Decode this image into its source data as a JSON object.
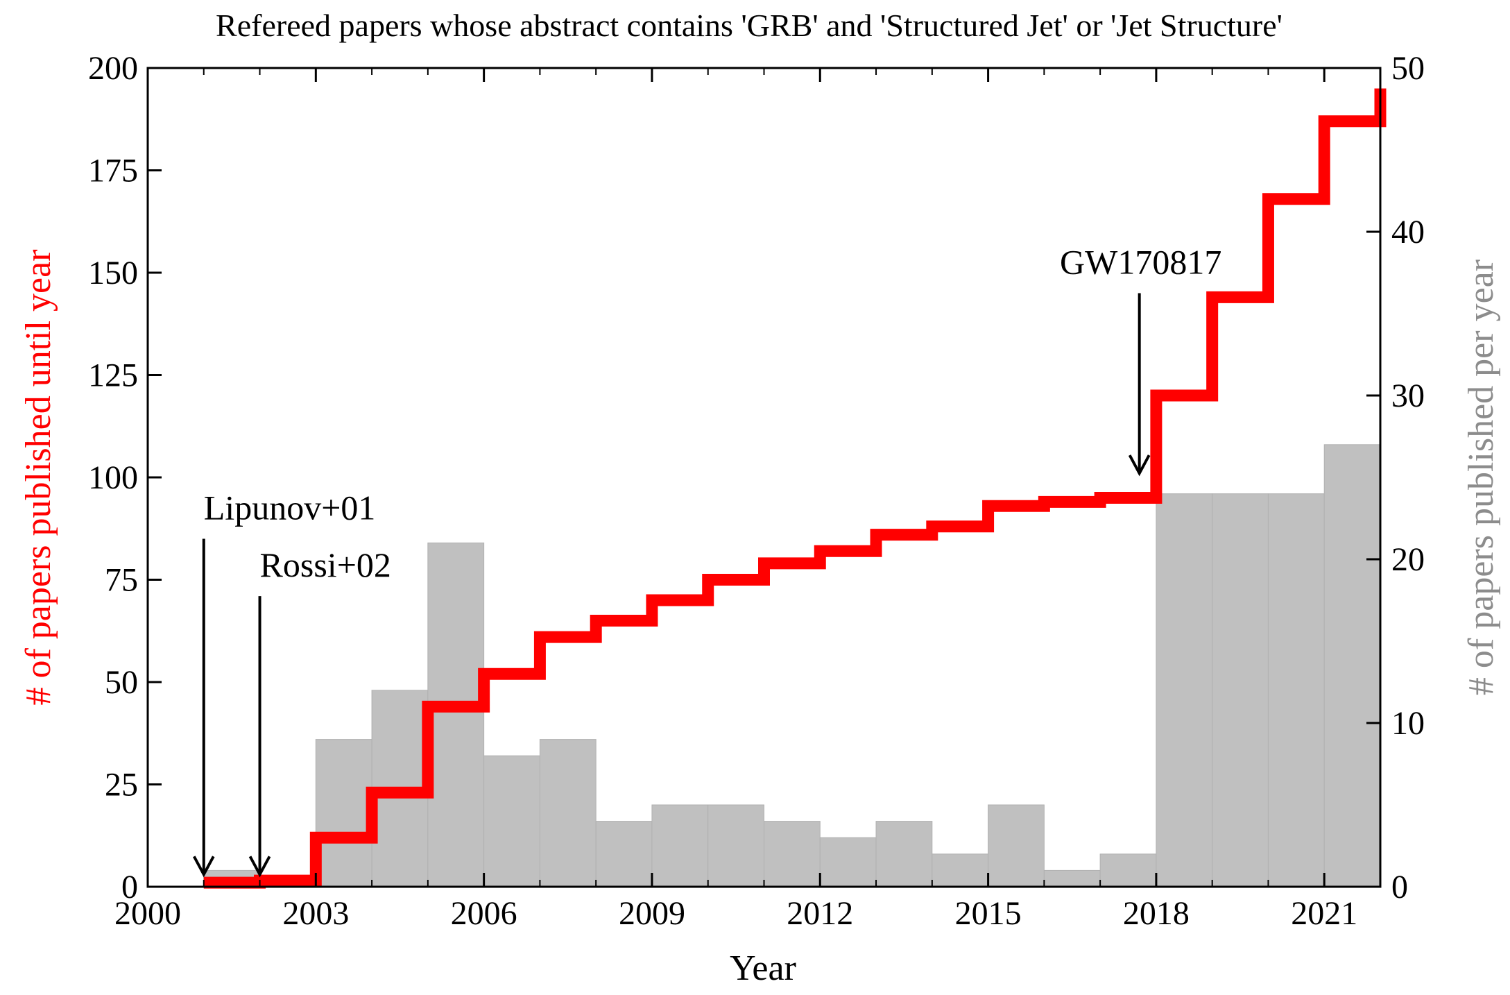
{
  "chart_data": {
    "type": "bar+step",
    "title": "Refereed papers whose abstract contains 'GRB' and 'Structured Jet' or 'Jet Structure'",
    "xlabel": "Year",
    "ylabel_left": "# of papers published until year",
    "ylabel_right": "# of papers published per year",
    "xlim": [
      2000,
      2022
    ],
    "ylim_left": [
      0,
      200
    ],
    "ylim_right": [
      0,
      50
    ],
    "x_ticks": [
      "2000",
      "2003",
      "2006",
      "2009",
      "2012",
      "2015",
      "2018",
      "2021"
    ],
    "y_left_ticks": [
      "0",
      "25",
      "50",
      "75",
      "100",
      "125",
      "150",
      "175",
      "200"
    ],
    "y_right_ticks": [
      "0",
      "10",
      "20",
      "30",
      "40",
      "50"
    ],
    "colors": {
      "cumulative": "#ff0000",
      "per_year": "#c0c0c0",
      "axis": "#000000",
      "right_label": "#8c8c8c"
    },
    "series": [
      {
        "name": "papers published per year",
        "axis": "right",
        "type": "bar",
        "years": [
          2001,
          2002,
          2003,
          2004,
          2005,
          2006,
          2007,
          2008,
          2009,
          2010,
          2011,
          2012,
          2013,
          2014,
          2015,
          2016,
          2017,
          2018,
          2019,
          2020,
          2021
        ],
        "values": [
          1,
          0,
          9,
          12,
          21,
          8,
          9,
          4,
          5,
          5,
          4,
          3,
          4,
          2,
          5,
          1,
          2,
          24,
          24,
          24,
          27
        ]
      },
      {
        "name": "papers published until year",
        "axis": "left",
        "type": "step",
        "years": [
          2001,
          2002,
          2003,
          2004,
          2005,
          2006,
          2007,
          2008,
          2009,
          2010,
          2011,
          2012,
          2013,
          2014,
          2015,
          2016,
          2017,
          2018,
          2019,
          2020,
          2021,
          2022
        ],
        "values": [
          1,
          1.5,
          12,
          23,
          44,
          52,
          61,
          65,
          70,
          75,
          79,
          82,
          86,
          88,
          93,
          94,
          95,
          120,
          144,
          168,
          187,
          195
        ]
      }
    ],
    "annotations": [
      {
        "text": "Lipunov+01",
        "x": 2001,
        "y_from": 85,
        "y_to": 3
      },
      {
        "text": "Rossi+02",
        "x": 2002,
        "y_from": 71,
        "y_to": 3
      },
      {
        "text": "GW170817",
        "x": 2017.7,
        "y_from": 145,
        "y_to": 101
      }
    ]
  }
}
